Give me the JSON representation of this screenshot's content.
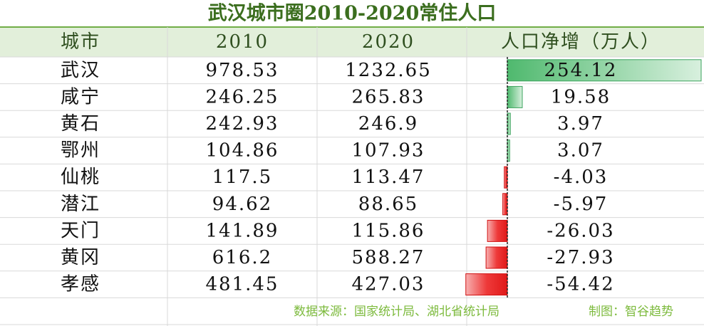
{
  "title": "武汉城市圈2010-2020常住人口",
  "table": {
    "header": [
      "城市",
      "2010",
      "2020",
      "人口净增（万人）"
    ],
    "rows": [
      [
        "武汉",
        978.53,
        1232.65,
        254.12
      ],
      [
        "咸宁",
        246.25,
        265.83,
        19.58
      ],
      [
        "黄石",
        242.93,
        246.9,
        3.97
      ],
      [
        "鄂州",
        104.86,
        107.93,
        3.07
      ],
      [
        "仙桃",
        117.5,
        113.47,
        -4.03
      ],
      [
        "潜江",
        94.62,
        88.65,
        -5.97
      ],
      [
        "天门",
        141.89,
        115.86,
        -26.03
      ],
      [
        "黄冈",
        616.2,
        588.27,
        -27.93
      ],
      [
        "孝感",
        481.45,
        427.03,
        -54.42
      ]
    ]
  },
  "footer": {
    "source": "数据来源：国家统计局、湖北省统计局",
    "credit": "制图：智谷趋势"
  }
}
